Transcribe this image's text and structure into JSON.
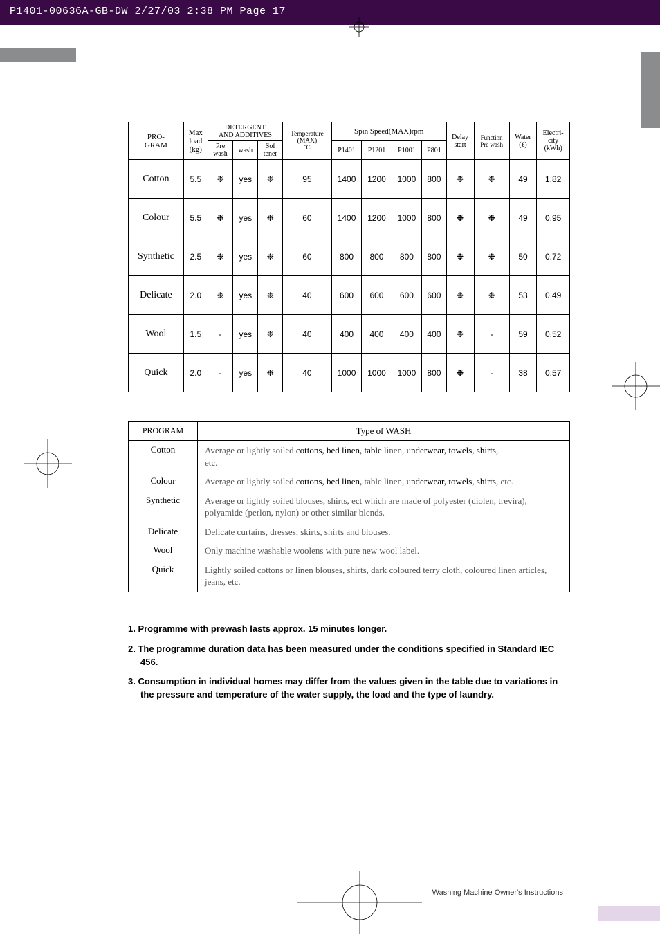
{
  "meta": {
    "print_slug": "P1401-00636A-GB-DW  2/27/03 2:38 PM  Page 17",
    "footer": "Washing Machine Owner's Instructions"
  },
  "spec": {
    "headers": {
      "program": "PRO-\nGRAM",
      "maxload": "Max\nload\n(kg)",
      "detergent_group": "DETERGENT\nAND ADDITIVES",
      "prewash": "Pre\nwash",
      "wash": "wash",
      "softener": "Sof\ntener",
      "temp": "Temperature\n(MAX)\n˚C",
      "spin_group": "Spin Speed(MAX)rpm",
      "p1401": "P1401",
      "p1201": "P1201",
      "p1001": "P1001",
      "p801": "P801",
      "delay": "Delay\nstart",
      "function": "Function\nPre wash",
      "water": "Water\n(ℓ)",
      "electricity": "Electri-\ncity\n(kWh)"
    },
    "rows": [
      {
        "name": "Cotton",
        "load": "5.5",
        "pre": "❉",
        "wash": "yes",
        "soft": "❉",
        "temp": "95",
        "s1": "1400",
        "s2": "1200",
        "s3": "1000",
        "s4": "800",
        "delay": "❉",
        "func": "❉",
        "water": "49",
        "elec": "1.82"
      },
      {
        "name": "Colour",
        "load": "5.5",
        "pre": "❉",
        "wash": "yes",
        "soft": "❉",
        "temp": "60",
        "s1": "1400",
        "s2": "1200",
        "s3": "1000",
        "s4": "800",
        "delay": "❉",
        "func": "❉",
        "water": "49",
        "elec": "0.95"
      },
      {
        "name": "Synthetic",
        "load": "2.5",
        "pre": "❉",
        "wash": "yes",
        "soft": "❉",
        "temp": "60",
        "s1": "800",
        "s2": "800",
        "s3": "800",
        "s4": "800",
        "delay": "❉",
        "func": "❉",
        "water": "50",
        "elec": "0.72"
      },
      {
        "name": "Delicate",
        "load": "2.0",
        "pre": "❉",
        "wash": "yes",
        "soft": "❉",
        "temp": "40",
        "s1": "600",
        "s2": "600",
        "s3": "600",
        "s4": "600",
        "delay": "❉",
        "func": "❉",
        "water": "53",
        "elec": "0.49"
      },
      {
        "name": "Wool",
        "load": "1.5",
        "pre": "-",
        "wash": "yes",
        "soft": "❉",
        "temp": "40",
        "s1": "400",
        "s2": "400",
        "s3": "400",
        "s4": "400",
        "delay": "❉",
        "func": "-",
        "water": "59",
        "elec": "0.52"
      },
      {
        "name": "Quick",
        "load": "2.0",
        "pre": "-",
        "wash": "yes",
        "soft": "❉",
        "temp": "40",
        "s1": "1000",
        "s2": "1000",
        "s3": "1000",
        "s4": "800",
        "delay": "❉",
        "func": "-",
        "water": "38",
        "elec": "0.57"
      }
    ]
  },
  "types": {
    "hdr_program": "PROGRAM",
    "hdr_type": "Type of  WASH",
    "rows": [
      {
        "prog": "Cotton",
        "pre": "Average or lightly soiled ",
        "b1": "cottons, bed linen, table",
        "mid": " linen, ",
        "b2": "underwear, towels, shirts,",
        "post": "",
        "line2": "etc."
      },
      {
        "prog": "Colour",
        "pre": "Average or  lightly soiled ",
        "b1": "cottons, bed linen,",
        "mid": " table  linen, ",
        "b2": "underwear, towels, shirts,",
        "post": " etc.",
        "line2": ""
      },
      {
        "prog": "Synthetic",
        "pre": "Average or lightly soiled blouses, shirts, ect which are made of polyester (diolen, trevira), polyamide (perlon, nylon) or other similar blends.",
        "b1": "",
        "mid": "",
        "b2": "",
        "post": "",
        "line2": ""
      },
      {
        "prog": "Delicate",
        "pre": "Delicate curtains, dresses, skirts, shirts and blouses.",
        "b1": "",
        "mid": "",
        "b2": "",
        "post": "",
        "line2": ""
      },
      {
        "prog": "Wool",
        "pre": "Only machine washable woolens with pure new wool label.",
        "b1": "",
        "mid": "",
        "b2": "",
        "post": "",
        "line2": ""
      },
      {
        "prog": "Quick",
        "pre": "Lightly soiled cottons or linen blouses, shirts, dark coloured terry cloth, coloured linen articles, jeans, etc.",
        "b1": "",
        "mid": "",
        "b2": "",
        "post": "",
        "line2": ""
      }
    ]
  },
  "notes": {
    "n1": "1. Programme with prewash lasts approx. 15 minutes longer.",
    "n2": "2. The programme duration data has been measured under the conditions specified in Standard IEC 456.",
    "n3": "3. Consumption in individual homes may differ from the values given in the table due to variations in the pressure and temperature of the water supply, the load and the type of laundry."
  }
}
